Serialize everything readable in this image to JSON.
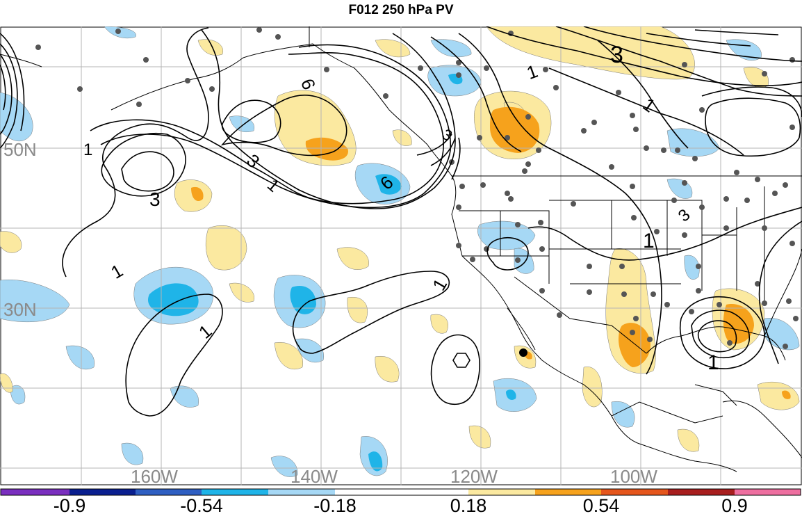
{
  "title": "F012 250 hPa PV",
  "map": {
    "lat_labels": [
      "50N",
      "30N"
    ],
    "lon_labels": [
      "160W",
      "140W",
      "120W",
      "100W"
    ],
    "contour_labels": [
      "1",
      "1",
      "1",
      "1",
      "1",
      "1",
      "1",
      "1",
      "1",
      "3",
      "3",
      "3",
      "3",
      "6",
      "6",
      "3"
    ],
    "colors": {
      "ocean": "#ffffff",
      "grid": "#b4b4b4",
      "coast": "#000000",
      "label": "#8a8a8a",
      "neg_light": "#a6d8f5",
      "neg_mid": "#1fb4e8",
      "pos_light": "#fbe9a0",
      "pos_mid": "#f6a21c",
      "station": "#555555",
      "marker": "#000000"
    }
  },
  "colorbar": {
    "tick_labels": [
      "-0.9",
      "-0.54",
      "-0.18",
      "0.18",
      "0.54",
      "0.9"
    ],
    "segment_colors": [
      "#7a2fbf",
      "#0a1f8f",
      "#2f5fc2",
      "#1fb4e8",
      "#a6d8f5",
      "#ffffff",
      "#fbe9a0",
      "#f6a21c",
      "#e5561c",
      "#a81e1e",
      "#ee6fa0"
    ]
  }
}
